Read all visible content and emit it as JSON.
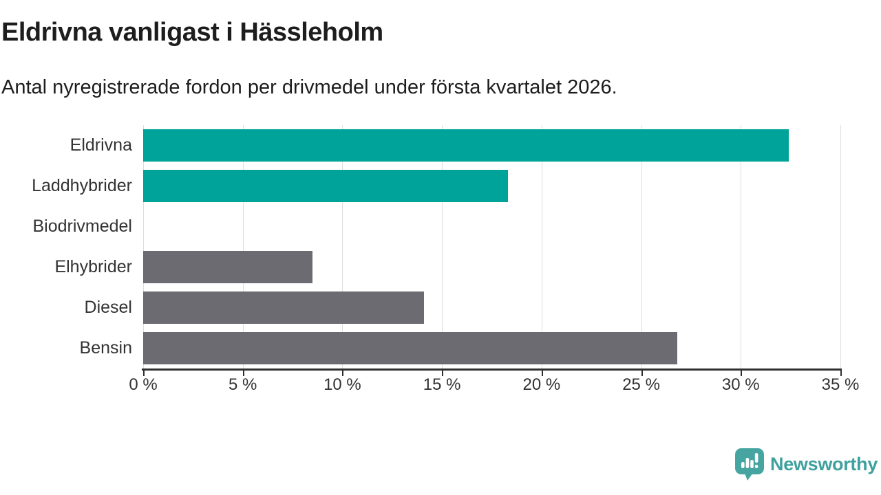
{
  "header": {
    "title": "Eldrivna vanligast i Hässleholm",
    "subtitle": "Antal nyregistrerade fordon per drivmedel under första kvartalet 2026."
  },
  "chart_data": {
    "type": "bar",
    "orientation": "horizontal",
    "title": "Eldrivna vanligast i Hässleholm",
    "subtitle": "Antal nyregistrerade fordon per drivmedel under första kvartalet 2026.",
    "categories": [
      "Eldrivna",
      "Laddhybrider",
      "Biodrivmedel",
      "Elhybrider",
      "Diesel",
      "Bensin"
    ],
    "values": [
      32.4,
      18.3,
      0,
      8.5,
      14.1,
      26.8
    ],
    "unit": "%",
    "xlim": [
      0,
      35
    ],
    "x_ticks": [
      0,
      5,
      10,
      15,
      20,
      25,
      30,
      35
    ],
    "x_tick_labels": [
      "0 %",
      "5 %",
      "10 %",
      "15 %",
      "20 %",
      "25 %",
      "30 %",
      "35 %"
    ],
    "bar_colors": [
      "#00a399",
      "#00a399",
      "#6b6b71",
      "#6b6b71",
      "#6b6b71",
      "#6b6b71"
    ],
    "highlight_color": "#00a399",
    "default_color": "#6b6b71",
    "grid": true,
    "legend": "none",
    "ylabel": "",
    "xlabel": ""
  },
  "footer": {
    "brand": "Newsworthy",
    "brand_color": "#3ea19e",
    "logo_icon": "speech-bubble-bar-chart-exclamation"
  }
}
